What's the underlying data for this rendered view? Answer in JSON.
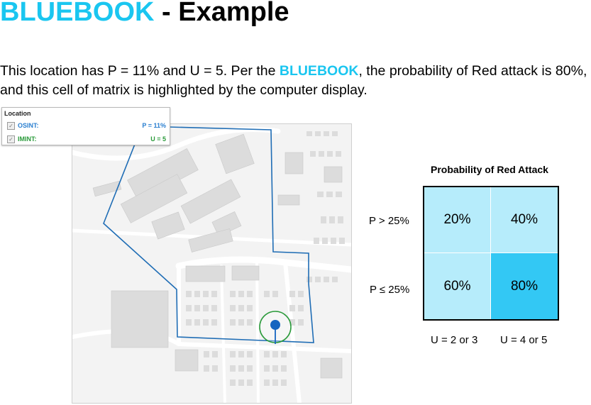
{
  "header": {
    "brand": "BLUEBOOK",
    "rest": " - Example"
  },
  "description": {
    "part1": "This location has P = 11% and U = 5. Per the ",
    "brand": "BLUEBOOK",
    "part2": ",  the probability of Red attack is 80%, and this cell of matrix is highlighted by the computer display."
  },
  "location_panel": {
    "title": "Location",
    "rows": [
      {
        "label": "OSINT:",
        "value": "P = 11%",
        "checked": true,
        "color": "#2a7fd0"
      },
      {
        "label": "IMINT:",
        "value": "U = 5",
        "checked": true,
        "color": "#2a9a3a"
      }
    ]
  },
  "map": {
    "boundary_color": "#1f6db5",
    "marker_color": "#1565c0",
    "circle_color": "#2a9a3a"
  },
  "matrix": {
    "title": "Probability of Red Attack",
    "row_labels": [
      "P > 25%",
      "P ≤ 25%"
    ],
    "col_labels": [
      "U = 2 or 3",
      "U = 4 or 5"
    ],
    "cells": [
      [
        "20%",
        "40%"
      ],
      [
        "60%",
        "80%"
      ]
    ],
    "highlighted": "80%",
    "cell_color": "#b6ecfb",
    "highlight_color": "#33c8f4"
  }
}
